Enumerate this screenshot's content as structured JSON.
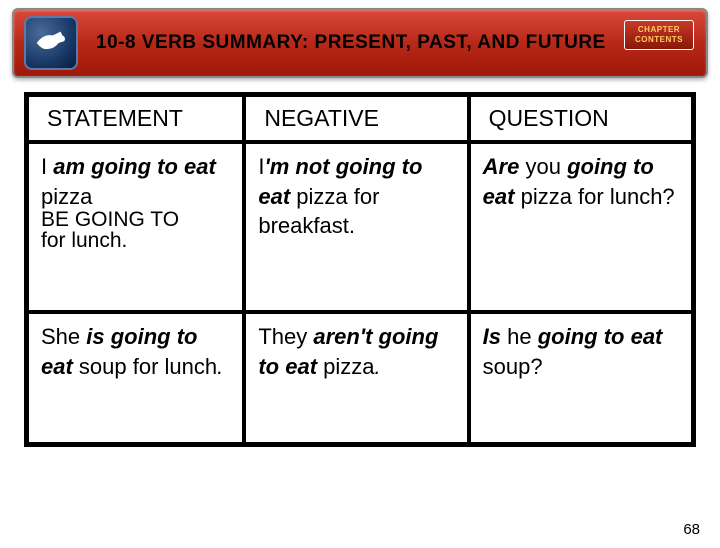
{
  "header": {
    "title": "10-8  VERB SUMMARY: PRESENT, PAST, AND FUTURE",
    "chapter_btn_line1": "CHAPTER",
    "chapter_btn_line2": "CONTENTS"
  },
  "table": {
    "headers": {
      "statement": "STATEMENT",
      "negative": "NEGATIVE",
      "question": "QUESTION"
    },
    "row1": {
      "statement": {
        "parts": [
          {
            "t": "I ",
            "s": ""
          },
          {
            "t": "am going to eat",
            "s": "bi"
          },
          {
            "t": " pizza",
            "s": ""
          }
        ],
        "overlap_parts": [
          {
            "t": "BE GOING TO",
            "s": ""
          },
          {
            "t": "for lunch.",
            "s": ""
          }
        ]
      },
      "negative": {
        "parts": [
          {
            "t": "I",
            "s": ""
          },
          {
            "t": "'m not going to eat",
            "s": "bi"
          },
          {
            "t": " pizza for breakfast.",
            "s": ""
          }
        ]
      },
      "question": {
        "parts": [
          {
            "t": "Are",
            "s": "bi"
          },
          {
            "t": " you ",
            "s": ""
          },
          {
            "t": "going to eat",
            "s": "bi"
          },
          {
            "t": " pizza for lunch?",
            "s": ""
          }
        ]
      }
    },
    "row2": {
      "statement": {
        "parts": [
          {
            "t": "She ",
            "s": ""
          },
          {
            "t": "is going to eat",
            "s": "bi"
          },
          {
            "t": " soup for lunch",
            "s": ""
          },
          {
            "t": ".",
            "s": "i"
          }
        ]
      },
      "negative": {
        "parts": [
          {
            "t": "They ",
            "s": ""
          },
          {
            "t": "aren't going to eat",
            "s": "bi"
          },
          {
            "t": " pizza",
            "s": ""
          },
          {
            "t": ".",
            "s": "i"
          }
        ]
      },
      "question": {
        "parts": [
          {
            "t": "Is",
            "s": "bi"
          },
          {
            "t": " he ",
            "s": ""
          },
          {
            "t": "going to eat",
            "s": "bi"
          },
          {
            "t": " soup?",
            "s": ""
          }
        ]
      }
    }
  },
  "page_number": "68",
  "colors": {
    "header_grad_top": "#d94a3a",
    "header_grad_bot": "#a01808",
    "badge_color": "#1a3a6a",
    "border": "#000000",
    "bg": "#ffffff"
  }
}
